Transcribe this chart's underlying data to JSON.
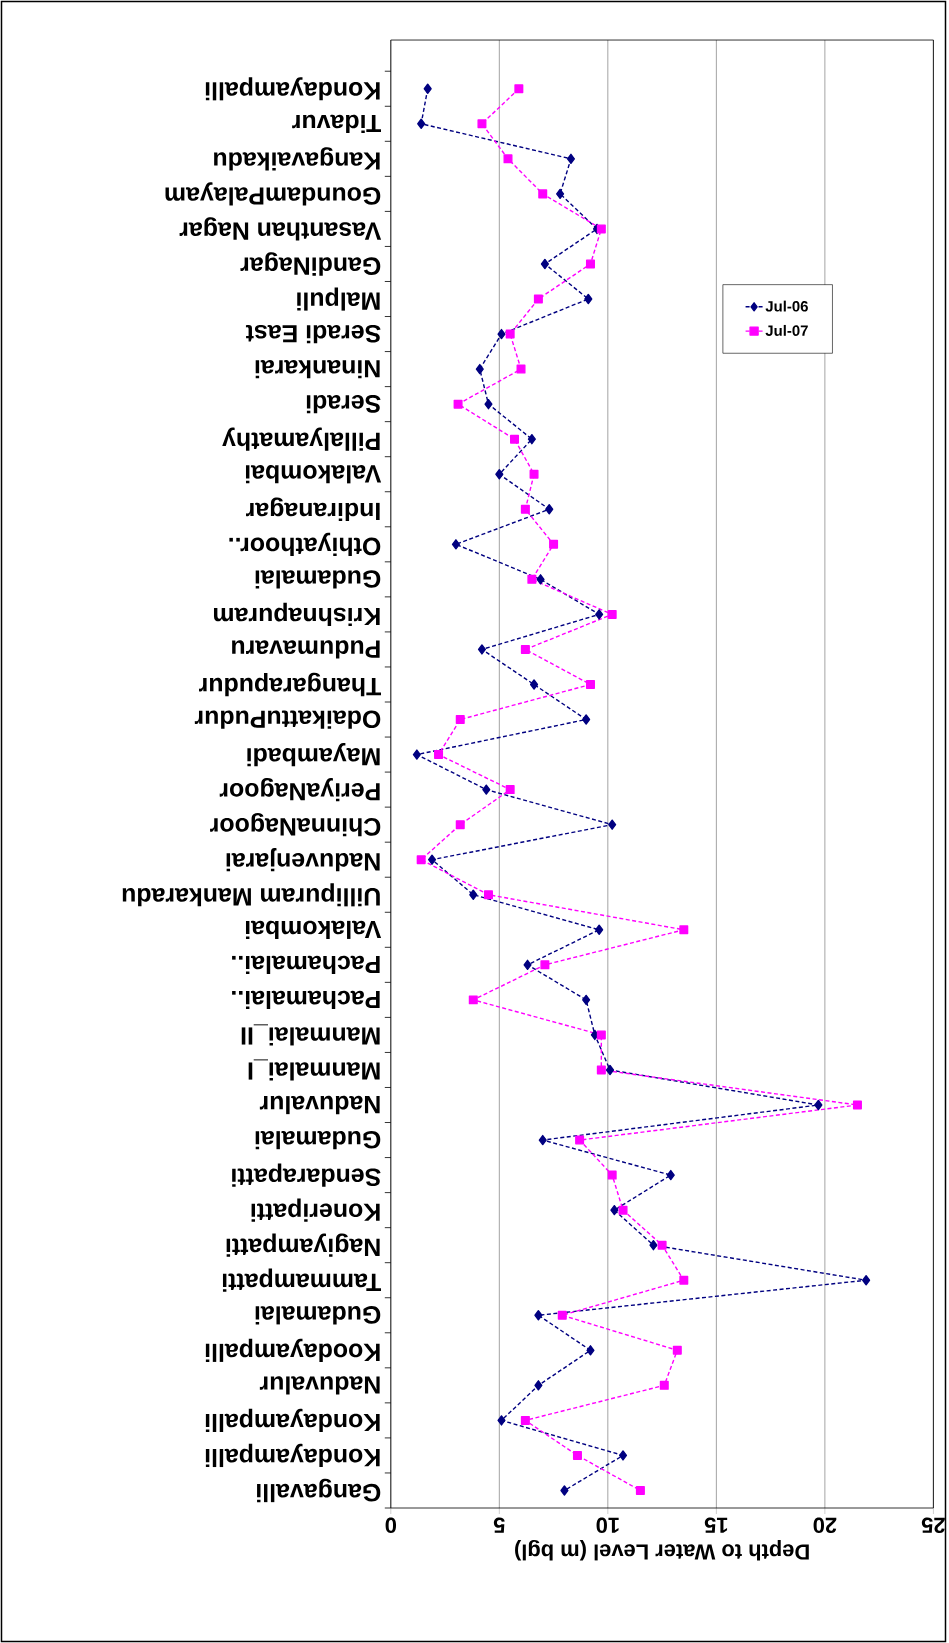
{
  "chart_data": {
    "type": "line",
    "orientation": "horizontal",
    "xlabel": "Depth to Water Level (m bgl)",
    "categories": [
      "Kondayampalli",
      "Tidavur",
      "Kangavaikadu",
      "GoundamPalayam",
      "Vasanthan Nagar",
      "GandiNagar",
      "Malpuli",
      "Seradi East",
      "Ninankarai",
      "Seradi",
      "Pillalyamathy",
      "Valakombai",
      "Indiranagar",
      "Othiyathoor..",
      "Gudamalai",
      "Krishnapuram",
      "Pudumavaru",
      "Thangarapudur",
      "OdaikattuPudur",
      "Mayambadi",
      "PeriyaNagoor",
      "ChinnaNagoor",
      "Naduvenjarai",
      "Uillipuram Mankaradu",
      "Valakombai",
      "Pachamalai..",
      "Pachamalai..",
      "Manmalai_II",
      "Manmalai_I",
      "Naduvalur",
      "Gudamalai",
      "Sendarapatti",
      "Koneripatti",
      "Nagiyampatti",
      "Tammampatti",
      "Gudamalai",
      "Koodayampalli",
      "Naduvalur",
      "Kondayampalli",
      "Kondayampalli",
      "Gangavalli"
    ],
    "series": [
      {
        "name": "Jul-06",
        "color": "#000080",
        "marker": "diamond",
        "values": [
          1.7,
          1.4,
          8.3,
          7.8,
          9.5,
          7.1,
          9.1,
          5.1,
          4.1,
          4.5,
          6.5,
          5.0,
          7.3,
          3.0,
          6.9,
          9.6,
          4.2,
          6.6,
          9.0,
          1.2,
          4.4,
          10.2,
          1.9,
          3.8,
          9.6,
          6.3,
          9.0,
          9.4,
          10.1,
          19.7,
          7.0,
          12.9,
          10.3,
          12.1,
          21.9,
          6.8,
          9.2,
          6.8,
          5.1,
          10.7,
          8.0
        ]
      },
      {
        "name": "Jul-07",
        "color": "#ff00ff",
        "marker": "square",
        "values": [
          5.9,
          4.2,
          5.4,
          7.0,
          9.7,
          9.2,
          6.8,
          5.5,
          6.0,
          3.1,
          5.7,
          6.6,
          6.2,
          7.5,
          6.5,
          10.2,
          6.2,
          9.2,
          3.2,
          2.2,
          5.5,
          3.2,
          1.4,
          4.5,
          13.5,
          7.1,
          3.8,
          9.7,
          9.7,
          21.5,
          8.7,
          10.2,
          10.7,
          12.5,
          13.5,
          7.9,
          13.2,
          12.6,
          6.2,
          8.6,
          11.5
        ]
      }
    ],
    "xlim": [
      0,
      25
    ],
    "xticks": [
      0,
      5,
      10,
      15,
      20,
      25
    ],
    "grid": "x",
    "legend": "top right",
    "line_style": "dashed"
  }
}
